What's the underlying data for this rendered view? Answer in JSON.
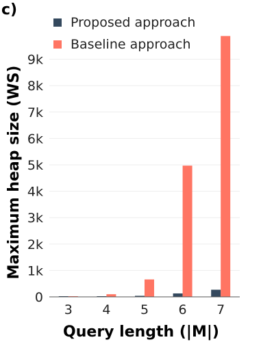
{
  "panel_label": "c)",
  "chart_data": {
    "type": "bar",
    "categories": [
      "3",
      "4",
      "5",
      "6",
      "7"
    ],
    "series": [
      {
        "name": "Proposed approach",
        "color": "#34495e",
        "values": [
          2,
          10,
          40,
          130,
          270
        ]
      },
      {
        "name": "Baseline approach",
        "color": "#ff7563",
        "values": [
          10,
          100,
          660,
          4970,
          9880
        ]
      }
    ],
    "xlabel": "Query length (|M|)",
    "ylabel": "Maximum heap size (WS)",
    "ylim": [
      0,
      10000
    ],
    "yticks": [
      0,
      1000,
      2000,
      3000,
      4000,
      5000,
      6000,
      7000,
      8000,
      9000
    ],
    "ytick_labels": [
      "0",
      "1k",
      "2k",
      "3k",
      "4k",
      "5k",
      "6k",
      "7k",
      "8k",
      "9k"
    ],
    "grid": true,
    "legend_position": "top-left"
  }
}
